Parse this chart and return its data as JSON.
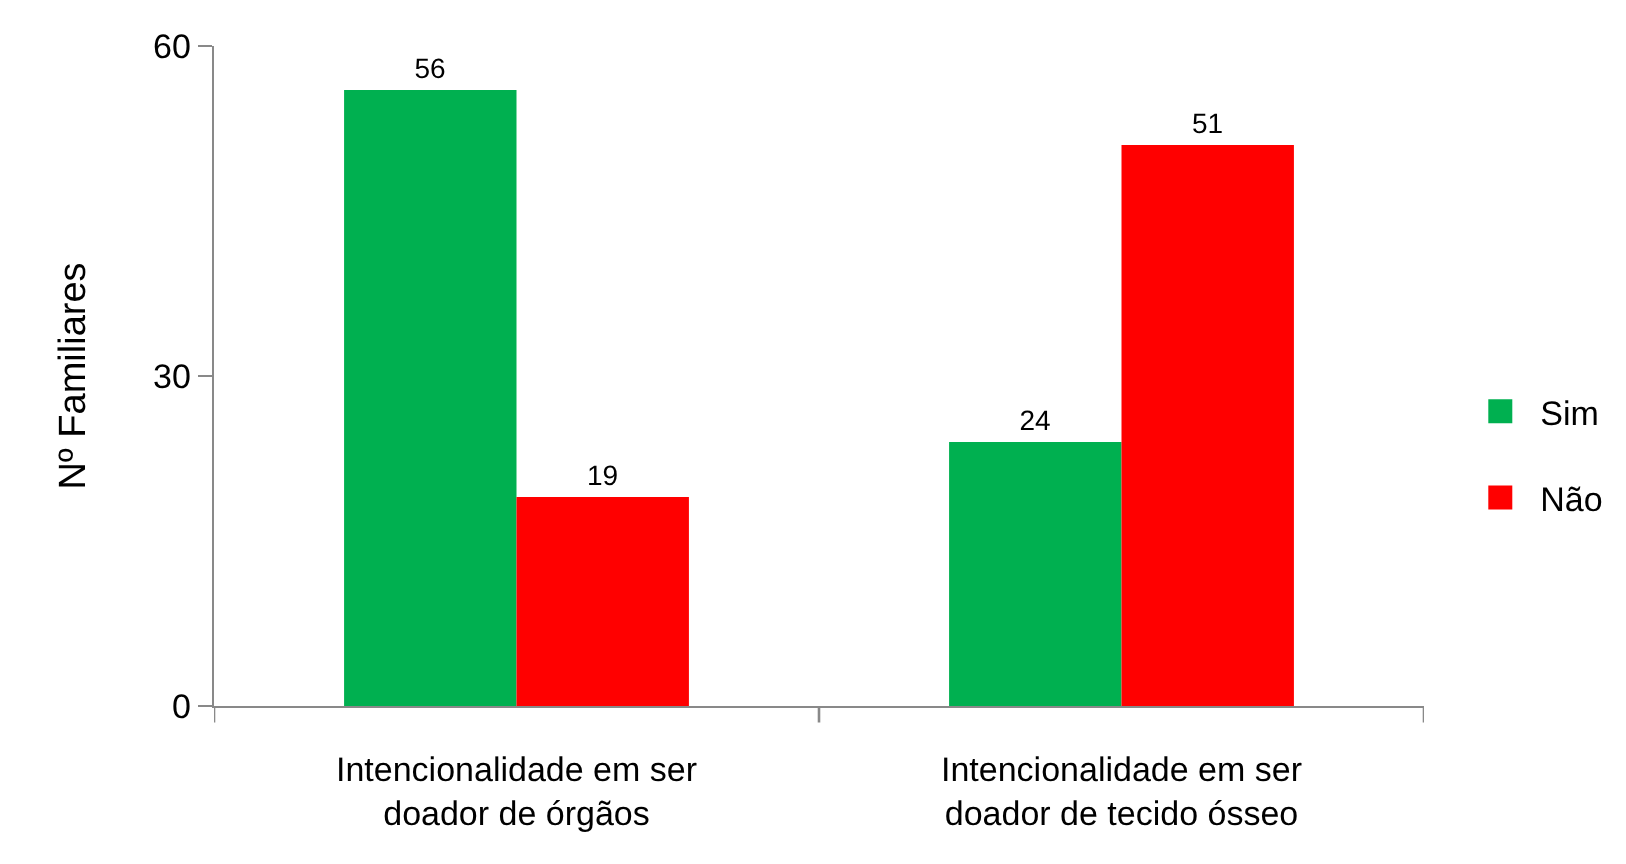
{
  "chart_data": {
    "type": "bar",
    "ylabel": "Nº Familiares",
    "categories": [
      "Intencionalidade em ser\ndoador de órgãos",
      "Intencionalidade em ser\ndoador de tecido ósseo"
    ],
    "series": [
      {
        "name": "Sim",
        "color": "#00b050",
        "values": [
          56,
          24
        ]
      },
      {
        "name": "Não",
        "color": "#ff0000",
        "values": [
          19,
          51
        ]
      }
    ],
    "ylim": [
      0,
      60
    ],
    "yticks": [
      0,
      30,
      60
    ],
    "data_labels": true,
    "legend": "right"
  }
}
